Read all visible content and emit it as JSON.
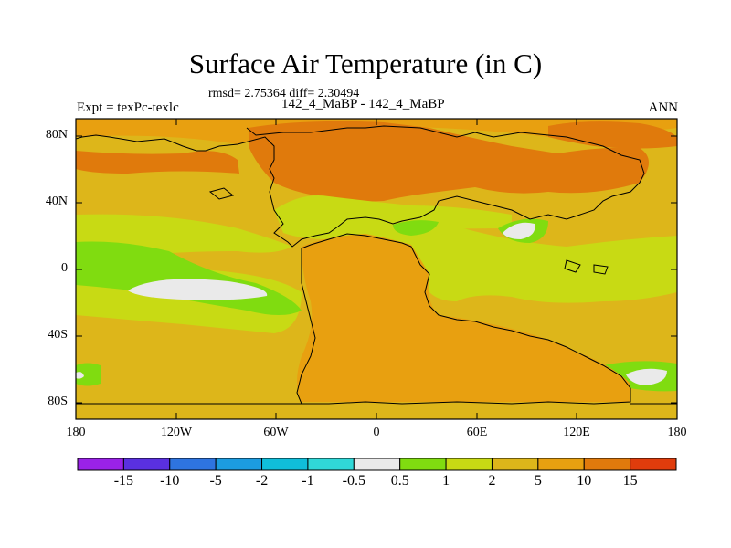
{
  "header": {
    "title": "Surface Air Temperature (in C)",
    "stats": "rmsd= 2.75364 diff= 2.30494",
    "subtitle": "142_4_MaBP - 142_4_MaBP",
    "left_label": "Expt = texPc-texlc",
    "right_label": "ANN"
  },
  "map": {
    "x_ticks": [
      "180",
      "120W",
      "60W",
      "0",
      "60E",
      "120E",
      "180"
    ],
    "y_ticks": [
      "80N",
      "40N",
      "0",
      "40S",
      "80S"
    ],
    "field_colors": {
      "dark_orange": "#E07A0C",
      "orange": "#E8A010",
      "yellow_orange": "#DDB61A",
      "yellow_green": "#C8DA14",
      "green": "#80DC10",
      "white": "#F0F0F0"
    }
  },
  "colorbar": {
    "colors": [
      "#9A22E8",
      "#5A30E0",
      "#2E74E0",
      "#1C9CE0",
      "#10BEDA",
      "#30D8D8",
      "#EAEAEA",
      "#80DC10",
      "#C8DA14",
      "#DDB61A",
      "#E8A010",
      "#E07A0C",
      "#E03C0C"
    ],
    "labels": [
      "-15",
      "-10",
      "-5",
      "-2",
      "-1",
      "-0.5",
      "0.5",
      "1",
      "2",
      "5",
      "10",
      "15"
    ]
  }
}
